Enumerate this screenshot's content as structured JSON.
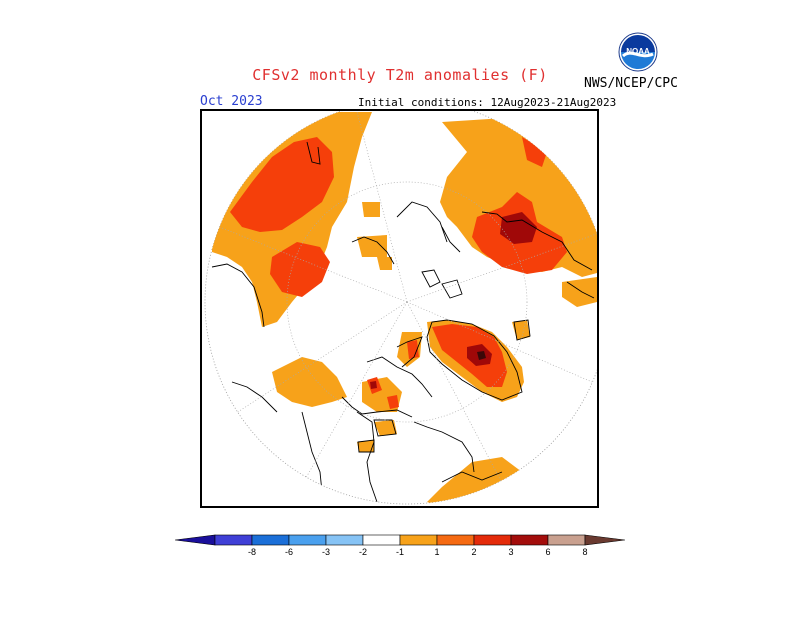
{
  "header": {
    "title": "CFSv2 monthly T2m anomalies (F)",
    "agency": "NWS/NCEP/CPC",
    "logo_text": "NOAA",
    "month": "Oct 2023",
    "initial_conditions": "Initial conditions: 12Aug2023-21Aug2023"
  },
  "colorbar": {
    "ticks": [
      "-8",
      "-6",
      "-3",
      "-2",
      "-1",
      "1",
      "2",
      "3",
      "6",
      "8"
    ],
    "colors": [
      "#1a0f9b",
      "#3f3fd6",
      "#1b6fd8",
      "#4aa0ee",
      "#86c3f5",
      "#ffffff",
      "#f7a21a",
      "#f56a12",
      "#e42b0a",
      "#a30d0b",
      "#c9a08f",
      "#6a3a30"
    ]
  },
  "map": {
    "projection": "north-polar-stereographic",
    "legend_colors": {
      "plus_1_to_2": "#f7a21a",
      "plus_2_to_3": "#f53f0a",
      "plus_3_to_6": "#a00808",
      "plus_6_to_8": "#3a0808"
    }
  }
}
